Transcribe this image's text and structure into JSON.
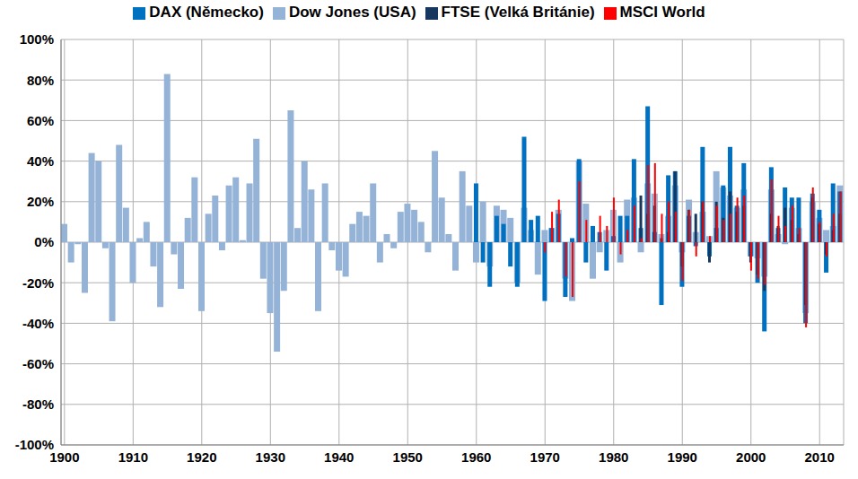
{
  "chart_data": {
    "type": "bar",
    "x": [
      1900,
      1901,
      1902,
      1903,
      1904,
      1905,
      1906,
      1907,
      1908,
      1909,
      1910,
      1911,
      1912,
      1913,
      1914,
      1915,
      1916,
      1917,
      1918,
      1919,
      1920,
      1921,
      1922,
      1923,
      1924,
      1925,
      1926,
      1927,
      1928,
      1929,
      1930,
      1931,
      1932,
      1933,
      1934,
      1935,
      1936,
      1937,
      1938,
      1939,
      1940,
      1941,
      1942,
      1943,
      1944,
      1945,
      1946,
      1947,
      1948,
      1949,
      1950,
      1951,
      1952,
      1953,
      1954,
      1955,
      1956,
      1957,
      1958,
      1959,
      1960,
      1961,
      1962,
      1963,
      1964,
      1965,
      1966,
      1967,
      1968,
      1969,
      1970,
      1971,
      1972,
      1973,
      1974,
      1975,
      1976,
      1977,
      1978,
      1979,
      1980,
      1981,
      1982,
      1983,
      1984,
      1985,
      1986,
      1987,
      1988,
      1989,
      1990,
      1991,
      1992,
      1993,
      1994,
      1995,
      1996,
      1997,
      1998,
      1999,
      2000,
      2001,
      2002,
      2003,
      2004,
      2005,
      2006,
      2007,
      2008,
      2009,
      2010,
      2011,
      2012,
      2013
    ],
    "series": [
      {
        "name": "Dow Jones (USA)",
        "color": "#95b3d7",
        "values": [
          9,
          -10,
          -1,
          -25,
          44,
          40,
          -3,
          -39,
          48,
          17,
          -20,
          2,
          10,
          -12,
          -32,
          83,
          -6,
          -23,
          12,
          32,
          -34,
          14,
          23,
          -4,
          28,
          32,
          1,
          29,
          51,
          -18,
          -35,
          -54,
          -24,
          65,
          7,
          40,
          26,
          -34,
          29,
          -4,
          -14,
          -17,
          9,
          15,
          13,
          29,
          -10,
          4,
          -3,
          15,
          19,
          16,
          10,
          -5,
          45,
          22,
          4,
          -14,
          35,
          18,
          -10,
          20,
          -12,
          18,
          16,
          12,
          -20,
          17,
          6,
          -16,
          6,
          7,
          16,
          -18,
          -29,
          40,
          19,
          -18,
          -5,
          6,
          16,
          -10,
          21,
          22,
          -5,
          29,
          24,
          4,
          13,
          28,
          -5,
          21,
          5,
          15,
          3,
          35,
          27,
          23,
          17,
          26,
          -7,
          -8,
          -17,
          26,
          4,
          -1,
          17,
          7,
          -35,
          20,
          12,
          6,
          8,
          28
        ]
      },
      {
        "name": "DAX (Německo)",
        "color": "#0070c0",
        "values": [
          null,
          null,
          null,
          null,
          null,
          null,
          null,
          null,
          null,
          null,
          null,
          null,
          null,
          null,
          null,
          null,
          null,
          null,
          null,
          null,
          null,
          null,
          null,
          null,
          null,
          null,
          null,
          null,
          null,
          null,
          null,
          null,
          null,
          null,
          null,
          null,
          null,
          null,
          null,
          null,
          null,
          null,
          null,
          null,
          null,
          null,
          null,
          null,
          null,
          null,
          null,
          null,
          null,
          null,
          null,
          null,
          null,
          null,
          null,
          null,
          29,
          -10,
          -22,
          13,
          9,
          -12,
          -22,
          52,
          11,
          13,
          -29,
          7,
          14,
          -27,
          2,
          41,
          -10,
          8,
          5,
          -14,
          3,
          13,
          13,
          41,
          7,
          67,
          5,
          -31,
          33,
          35,
          -22,
          13,
          -2,
          47,
          -7,
          7,
          28,
          47,
          18,
          39,
          -7,
          -20,
          -44,
          37,
          7,
          27,
          22,
          22,
          -40,
          24,
          16,
          -15,
          29,
          25
        ]
      },
      {
        "name": "FTSE (Velká Británie)",
        "color": "#17375e",
        "values": [
          null,
          null,
          null,
          null,
          null,
          null,
          null,
          null,
          null,
          null,
          null,
          null,
          null,
          null,
          null,
          null,
          null,
          null,
          null,
          null,
          null,
          null,
          null,
          null,
          null,
          null,
          null,
          null,
          null,
          null,
          null,
          null,
          null,
          null,
          null,
          null,
          null,
          null,
          null,
          null,
          null,
          null,
          null,
          null,
          null,
          null,
          null,
          null,
          null,
          null,
          null,
          null,
          null,
          null,
          null,
          null,
          null,
          null,
          null,
          null,
          null,
          null,
          null,
          null,
          null,
          null,
          null,
          null,
          null,
          null,
          null,
          null,
          null,
          null,
          null,
          null,
          null,
          null,
          null,
          null,
          null,
          null,
          null,
          null,
          23,
          14,
          18,
          2,
          5,
          35,
          -12,
          16,
          14,
          20,
          -10,
          20,
          12,
          25,
          15,
          18,
          -10,
          -16,
          -24,
          14,
          8,
          17,
          11,
          4,
          -31,
          22,
          9,
          -6,
          6,
          14
        ]
      },
      {
        "name": "MSCI World",
        "color": "#ff0000",
        "values": [
          null,
          null,
          null,
          null,
          null,
          null,
          null,
          null,
          null,
          null,
          null,
          null,
          null,
          null,
          null,
          null,
          null,
          null,
          null,
          null,
          null,
          null,
          null,
          null,
          null,
          null,
          null,
          null,
          null,
          null,
          null,
          null,
          null,
          null,
          null,
          null,
          null,
          null,
          null,
          null,
          null,
          null,
          null,
          null,
          null,
          null,
          null,
          null,
          null,
          null,
          null,
          null,
          null,
          null,
          null,
          null,
          null,
          null,
          null,
          null,
          null,
          null,
          null,
          null,
          null,
          null,
          null,
          null,
          null,
          null,
          -5,
          15,
          21,
          -17,
          -27,
          30,
          11,
          0,
          13,
          8,
          22,
          -6,
          6,
          18,
          2,
          38,
          39,
          14,
          20,
          15,
          -19,
          16,
          -7,
          20,
          3,
          18,
          11,
          14,
          22,
          23,
          -14,
          -18,
          -21,
          31,
          13,
          8,
          18,
          7,
          -42,
          27,
          10,
          -7,
          14,
          25
        ]
      }
    ],
    "xlim": [
      1899.5,
      2013.5
    ],
    "xticks": [
      1900,
      1910,
      1920,
      1930,
      1940,
      1950,
      1960,
      1970,
      1980,
      1990,
      2000,
      2010
    ],
    "ylim": [
      -100,
      100
    ],
    "yticks": [
      {
        "value": -100,
        "label": "-100%"
      },
      {
        "value": -80,
        "label": "-80%"
      },
      {
        "value": -60,
        "label": "-60%"
      },
      {
        "value": -40,
        "label": "-40%"
      },
      {
        "value": -20,
        "label": "-20%"
      },
      {
        "value": 0,
        "label": "0%"
      },
      {
        "value": 20,
        "label": "20%"
      },
      {
        "value": 40,
        "label": "40%"
      },
      {
        "value": 60,
        "label": "60%"
      },
      {
        "value": 80,
        "label": "80%"
      },
      {
        "value": 100,
        "label": "100%"
      }
    ],
    "grid": true,
    "legend": "top"
  }
}
